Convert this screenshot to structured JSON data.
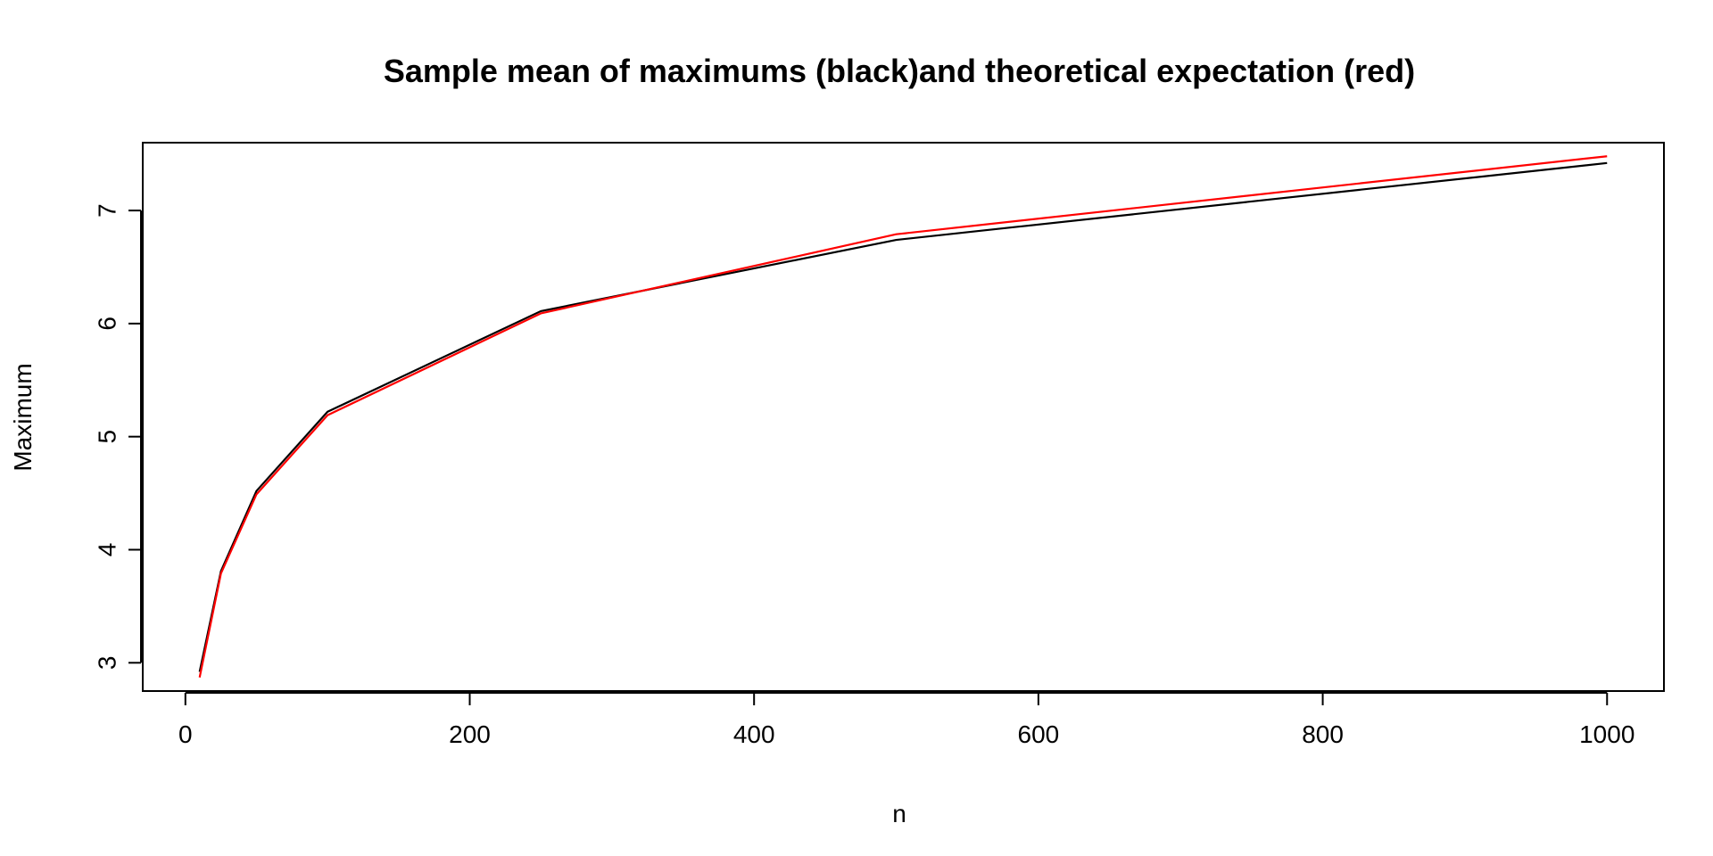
{
  "chart_data": {
    "type": "line",
    "title": "Sample mean of maximums (black)and theoretical expectation (red)",
    "xlabel": "n",
    "ylabel": "Maximum",
    "xlim": [
      -30,
      1040
    ],
    "ylim": [
      2.75,
      7.6
    ],
    "x_ticks": [
      0,
      200,
      400,
      600,
      800,
      1000
    ],
    "y_ticks": [
      3,
      4,
      5,
      6,
      7
    ],
    "grid": false,
    "legend": "none",
    "series": [
      {
        "color": "#000000",
        "x": [
          10,
          25,
          50,
          100,
          250,
          500,
          1000
        ],
        "values": [
          2.92,
          3.81,
          4.52,
          5.22,
          6.11,
          6.74,
          7.42
        ]
      },
      {
        "color": "#ff0000",
        "x": [
          10,
          25,
          50,
          100,
          250,
          500,
          1000
        ],
        "values": [
          2.87,
          3.79,
          4.49,
          5.19,
          6.09,
          6.79,
          7.48
        ]
      }
    ]
  }
}
